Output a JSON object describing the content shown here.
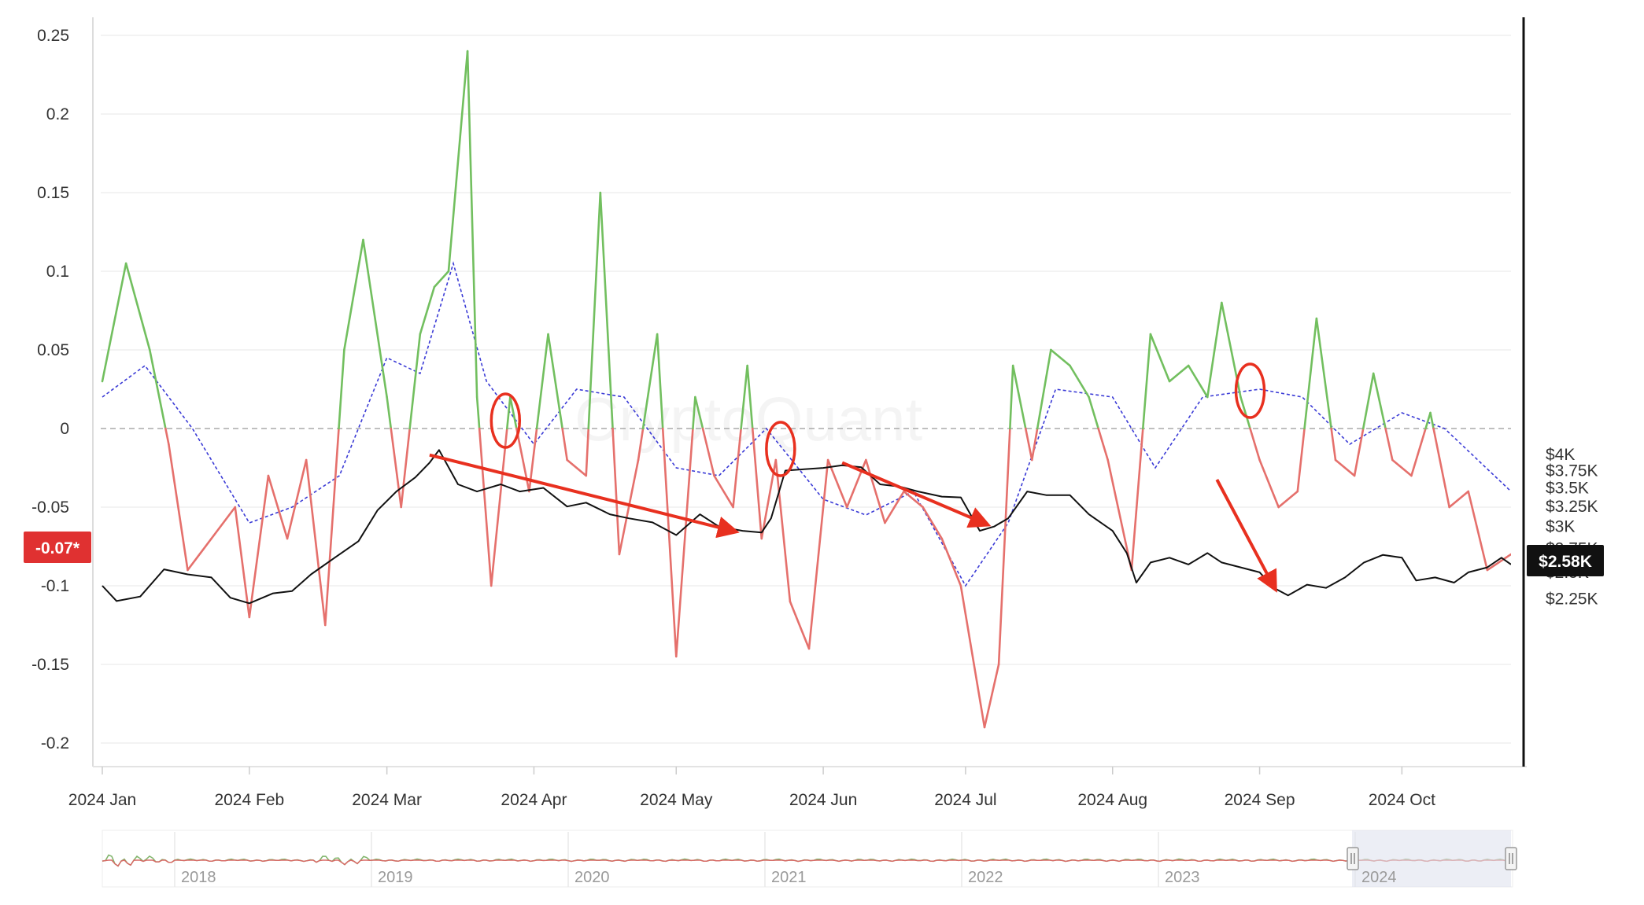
{
  "watermark": "CryptoQuant",
  "chart_data": {
    "type": "line",
    "x_axis": {
      "labels": [
        "2024 Jan",
        "2024 Feb",
        "2024 Mar",
        "2024 Apr",
        "2024 May",
        "2024 Jun",
        "2024 Jul",
        "2024 Aug",
        "2024 Sep",
        "2024 Oct"
      ],
      "range": [
        "2024-01-01",
        "2024-10-24"
      ]
    },
    "y_left": {
      "ticks": [
        "0.25",
        "0.2",
        "0.15",
        "0.1",
        "0.05",
        "0",
        "-0.05",
        "-0.1",
        "-0.15",
        "-0.2"
      ],
      "range": [
        -0.2,
        0.25
      ],
      "current_value_label": "-0.07*"
    },
    "y_right": {
      "ticks": [
        "$4K",
        "$3.75K",
        "$3.5K",
        "$3.25K",
        "$3K",
        "$2.75K",
        "$2.5K",
        "$2.25K"
      ],
      "range": [
        2200,
        4100
      ],
      "scale": "log",
      "current_value_label": "$2.58K"
    },
    "grid": "horizontal",
    "series": [
      {
        "type": "line",
        "colors": {
          "positive": "#72bf5f",
          "negative": "#e5706c"
        },
        "x": [
          "2024-01-01",
          "2024-01-06",
          "2024-01-11",
          "2024-01-15",
          "2024-01-19",
          "2024-01-24",
          "2024-01-29",
          "2024-02-01",
          "2024-02-05",
          "2024-02-09",
          "2024-02-13",
          "2024-02-17",
          "2024-02-21",
          "2024-02-25",
          "2024-03-01",
          "2024-03-04",
          "2024-03-08",
          "2024-03-11",
          "2024-03-14",
          "2024-03-18",
          "2024-03-20",
          "2024-03-23",
          "2024-03-27",
          "2024-03-31",
          "2024-04-04",
          "2024-04-08",
          "2024-04-12",
          "2024-04-15",
          "2024-04-19",
          "2024-04-23",
          "2024-04-27",
          "2024-05-01",
          "2024-05-05",
          "2024-05-09",
          "2024-05-13",
          "2024-05-16",
          "2024-05-19",
          "2024-05-22",
          "2024-05-25",
          "2024-05-29",
          "2024-06-02",
          "2024-06-06",
          "2024-06-10",
          "2024-06-14",
          "2024-06-18",
          "2024-06-22",
          "2024-06-26",
          "2024-06-30",
          "2024-07-05",
          "2024-07-08",
          "2024-07-11",
          "2024-07-15",
          "2024-07-19",
          "2024-07-23",
          "2024-07-27",
          "2024-07-31",
          "2024-08-05",
          "2024-08-09",
          "2024-08-13",
          "2024-08-17",
          "2024-08-21",
          "2024-08-24",
          "2024-08-28",
          "2024-09-01",
          "2024-09-05",
          "2024-09-09",
          "2024-09-13",
          "2024-09-17",
          "2024-09-21",
          "2024-09-25",
          "2024-09-29",
          "2024-10-03",
          "2024-10-07",
          "2024-10-11",
          "2024-10-15",
          "2024-10-19",
          "2024-10-24"
        ],
        "values": [
          0.03,
          0.105,
          0.05,
          -0.01,
          -0.09,
          -0.07,
          -0.05,
          -0.12,
          -0.03,
          -0.07,
          -0.02,
          -0.125,
          0.05,
          0.12,
          0.02,
          -0.05,
          0.06,
          0.09,
          0.1,
          0.24,
          0.02,
          -0.1,
          0.02,
          -0.04,
          0.06,
          -0.02,
          -0.03,
          0.15,
          -0.08,
          -0.02,
          0.06,
          -0.145,
          0.02,
          -0.03,
          -0.05,
          0.04,
          -0.07,
          -0.02,
          -0.11,
          -0.14,
          -0.02,
          -0.05,
          -0.02,
          -0.06,
          -0.04,
          -0.05,
          -0.07,
          -0.1,
          -0.19,
          -0.15,
          0.04,
          -0.02,
          0.05,
          0.04,
          0.02,
          -0.02,
          -0.09,
          0.06,
          0.03,
          0.04,
          0.02,
          0.08,
          0.02,
          -0.02,
          -0.05,
          -0.04,
          0.07,
          -0.02,
          -0.03,
          0.035,
          -0.02,
          -0.03,
          0.01,
          -0.05,
          -0.04,
          -0.09,
          -0.08
        ]
      },
      {
        "type": "line",
        "style": "dashed",
        "color": "#3b3bd6",
        "x": [
          "2024-01-01",
          "2024-01-10",
          "2024-01-20",
          "2024-02-01",
          "2024-02-10",
          "2024-02-20",
          "2024-03-01",
          "2024-03-08",
          "2024-03-15",
          "2024-03-22",
          "2024-04-01",
          "2024-04-10",
          "2024-04-20",
          "2024-05-01",
          "2024-05-10",
          "2024-05-20",
          "2024-06-01",
          "2024-06-10",
          "2024-06-20",
          "2024-07-01",
          "2024-07-10",
          "2024-07-20",
          "2024-08-01",
          "2024-08-10",
          "2024-08-20",
          "2024-09-01",
          "2024-09-10",
          "2024-09-20",
          "2024-10-01",
          "2024-10-10",
          "2024-10-24"
        ],
        "values": [
          0.02,
          0.04,
          0.0,
          -0.06,
          -0.05,
          -0.03,
          0.045,
          0.035,
          0.105,
          0.03,
          -0.01,
          0.025,
          0.02,
          -0.025,
          -0.03,
          0.0,
          -0.045,
          -0.055,
          -0.04,
          -0.1,
          -0.06,
          0.025,
          0.02,
          -0.025,
          0.02,
          0.025,
          0.02,
          -0.01,
          0.01,
          0.0,
          -0.04
        ]
      },
      {
        "type": "line",
        "color": "#111111",
        "axis": "right",
        "unit": "USD",
        "x": [
          "2024-01-01",
          "2024-01-04",
          "2024-01-09",
          "2024-01-14",
          "2024-01-19",
          "2024-01-24",
          "2024-01-28",
          "2024-02-01",
          "2024-02-06",
          "2024-02-10",
          "2024-02-14",
          "2024-02-19",
          "2024-02-24",
          "2024-02-28",
          "2024-03-03",
          "2024-03-07",
          "2024-03-10",
          "2024-03-12",
          "2024-03-16",
          "2024-03-20",
          "2024-03-25",
          "2024-03-29",
          "2024-04-03",
          "2024-04-08",
          "2024-04-12",
          "2024-04-17",
          "2024-04-21",
          "2024-04-26",
          "2024-05-01",
          "2024-05-06",
          "2024-05-10",
          "2024-05-15",
          "2024-05-19",
          "2024-05-21",
          "2024-05-24",
          "2024-05-28",
          "2024-06-01",
          "2024-06-05",
          "2024-06-09",
          "2024-06-13",
          "2024-06-17",
          "2024-06-21",
          "2024-06-26",
          "2024-06-30",
          "2024-07-04",
          "2024-07-07",
          "2024-07-10",
          "2024-07-14",
          "2024-07-18",
          "2024-07-23",
          "2024-07-27",
          "2024-08-01",
          "2024-08-04",
          "2024-08-06",
          "2024-08-09",
          "2024-08-13",
          "2024-08-17",
          "2024-08-21",
          "2024-08-24",
          "2024-08-28",
          "2024-09-01",
          "2024-09-04",
          "2024-09-07",
          "2024-09-11",
          "2024-09-15",
          "2024-09-19",
          "2024-09-23",
          "2024-09-27",
          "2024-10-01",
          "2024-10-04",
          "2024-10-08",
          "2024-10-12",
          "2024-10-15",
          "2024-10-19",
          "2024-10-22",
          "2024-10-24"
        ],
        "values": [
          2370,
          2230,
          2270,
          2530,
          2480,
          2450,
          2260,
          2210,
          2300,
          2320,
          2480,
          2650,
          2830,
          3200,
          3450,
          3650,
          3870,
          4070,
          3550,
          3450,
          3550,
          3450,
          3500,
          3250,
          3300,
          3150,
          3100,
          3050,
          2900,
          3150,
          3000,
          2950,
          2930,
          3100,
          3750,
          3770,
          3790,
          3830,
          3800,
          3550,
          3520,
          3450,
          3380,
          3370,
          2950,
          3000,
          3100,
          3450,
          3400,
          3400,
          3150,
          2950,
          2700,
          2400,
          2600,
          2650,
          2580,
          2700,
          2600,
          2550,
          2500,
          2350,
          2280,
          2380,
          2350,
          2450,
          2600,
          2680,
          2650,
          2420,
          2450,
          2400,
          2500,
          2550,
          2650,
          2580
        ]
      }
    ],
    "annotations": {
      "arrows": [
        {
          "from": [
            "2024-03-10",
            3990
          ],
          "to": [
            "2024-05-15",
            2920
          ],
          "color": "#e8301f"
        },
        {
          "from": [
            "2024-06-05",
            3870
          ],
          "to": [
            "2024-07-07",
            2990
          ],
          "color": "#e8301f"
        },
        {
          "from": [
            "2024-08-23",
            0.84
          ],
          "to": [
            "2024-09-05",
            2280
          ],
          "color": "#e8301f"
        }
      ],
      "circles": [
        {
          "x": "2024-03-26",
          "y": 0.005,
          "color": "#e8301f"
        },
        {
          "x": "2024-05-23",
          "y": -0.013,
          "color": "#e8301f"
        },
        {
          "x": "2024-08-30",
          "y": 0.024,
          "color": "#e8301f"
        }
      ]
    },
    "navigator": {
      "labels": [
        "2018",
        "2019",
        "2020",
        "2021",
        "2022",
        "2023",
        "2024"
      ]
    }
  }
}
